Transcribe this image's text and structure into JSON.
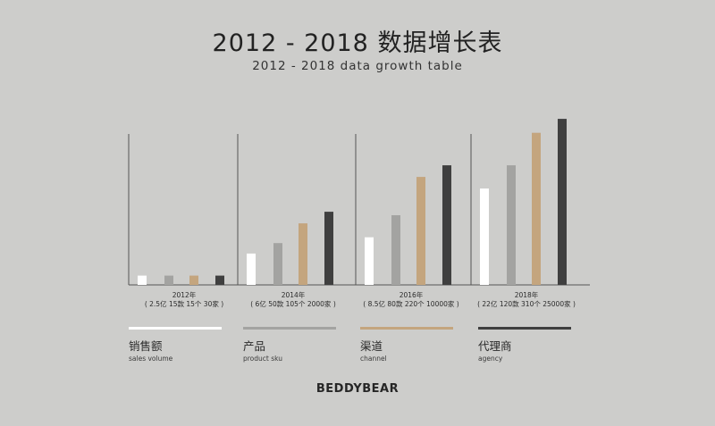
{
  "header": {
    "title": "2012 - 2018 数据增长表",
    "subtitle": "2012 - 2018  data growth table"
  },
  "colors": {
    "background": "#cdcdcb",
    "sales": "#ffffff",
    "product": "#a3a3a1",
    "channel": "#c4a57e",
    "agency": "#3f3f3f",
    "axis": "#555555"
  },
  "chart_data": {
    "type": "bar",
    "title": "2012 - 2018 数据增长表",
    "subtitle": "2012 - 2018  data growth table",
    "categories": [
      "2012年",
      "2014年",
      "2016年",
      "2018年"
    ],
    "category_notes": [
      "( 2.5亿 15款 15个 30家 )",
      "( 6亿 50款 105个 2000家 )",
      "( 8.5亿 80款 220个 10000家 )",
      "( 22亿 120款 310个 25000家 )"
    ],
    "series": [
      {
        "name": "销售额",
        "name_en": "sales volume",
        "color": "#ffffff",
        "values": [
          8,
          27,
          41,
          83
        ]
      },
      {
        "name": "产品",
        "name_en": "product sku",
        "color": "#a3a3a1",
        "values": [
          8,
          36,
          60,
          103
        ]
      },
      {
        "name": "渠道",
        "name_en": "channel",
        "color": "#c4a57e",
        "values": [
          8,
          53,
          93,
          131
        ]
      },
      {
        "name": "代理商",
        "name_en": "agency",
        "color": "#3f3f3f",
        "values": [
          8,
          63,
          103,
          143
        ]
      }
    ],
    "ylim": [
      0,
      150
    ],
    "xlabel": "",
    "ylabel": "",
    "grid": false
  },
  "legend": [
    {
      "cn": "销售额",
      "en": "sales volume",
      "color": "#ffffff"
    },
    {
      "cn": "产品",
      "en": "product sku",
      "color": "#a3a3a1"
    },
    {
      "cn": "渠道",
      "en": "channel",
      "color": "#c4a57e"
    },
    {
      "cn": "代理商",
      "en": "agency",
      "color": "#3f3f3f"
    }
  ],
  "footer": {
    "brand": "BEDDYBEAR"
  }
}
